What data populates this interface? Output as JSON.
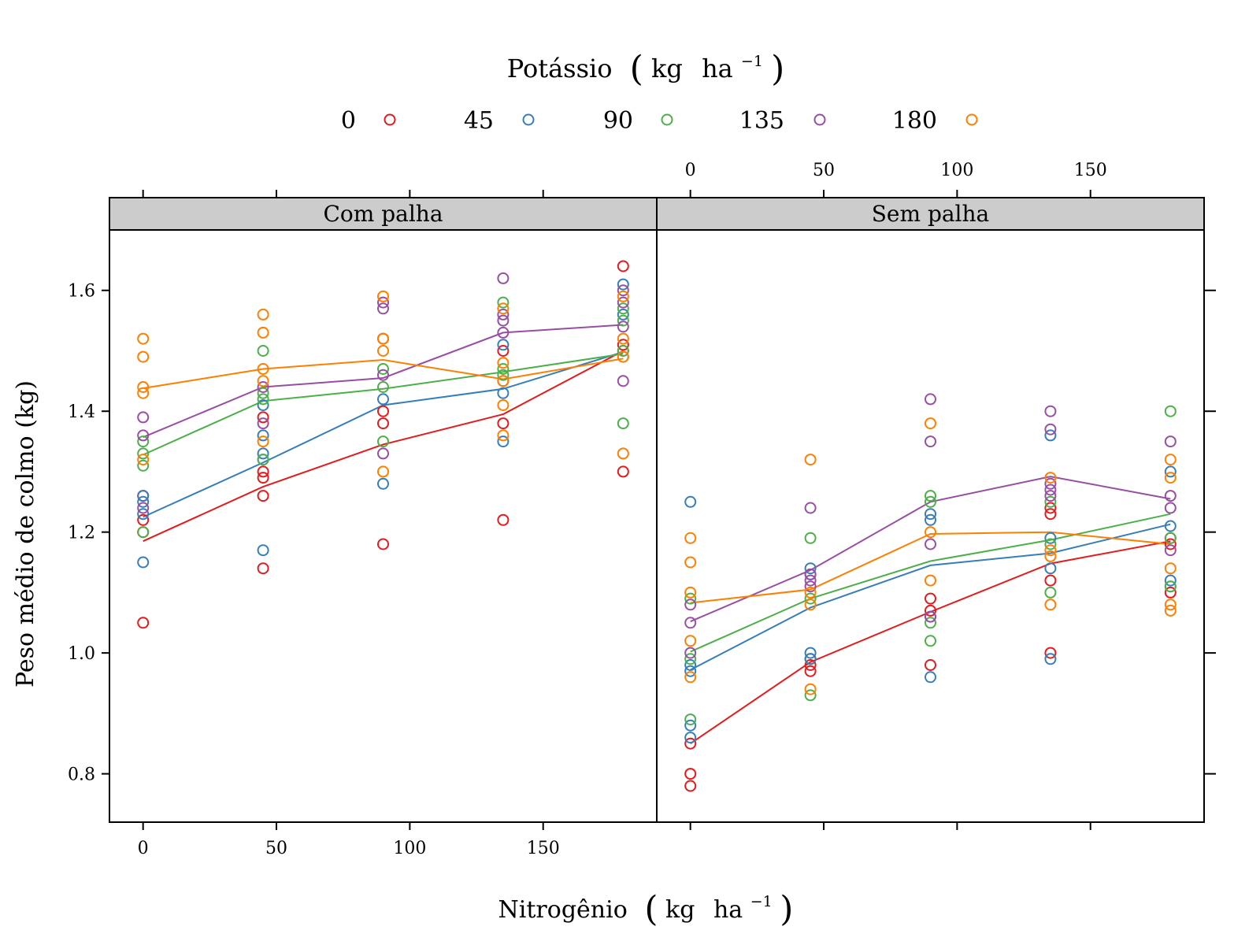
{
  "chart_data": {
    "type": "scatter",
    "title": "",
    "legend": {
      "title_main": "Potássio",
      "title_unit_kg": "kg",
      "title_unit_ha": "ha",
      "title_unit_exp": "−1",
      "position": "top",
      "entries": [
        "0",
        "45",
        "90",
        "135",
        "180"
      ]
    },
    "xlabel_main": "Nitrogênio",
    "xlabel_unit_kg": "kg",
    "xlabel_unit_ha": "ha",
    "xlabel_unit_exp": "−1",
    "ylabel": "Peso médio de colmo (kg)",
    "xlim": [
      -12.6,
      192.6
    ],
    "ylim": [
      0.72,
      1.7
    ],
    "x_ticks": [
      0,
      50,
      100,
      150
    ],
    "x_tick_labels": [
      "0",
      "50",
      "100",
      "150"
    ],
    "y_ticks": [
      0.8,
      1.0,
      1.2,
      1.4,
      1.6
    ],
    "y_tick_labels": [
      "0.8",
      "1.0",
      "1.2",
      "1.4",
      "1.6"
    ],
    "grid": false,
    "x_levels": [
      0,
      45,
      90,
      135,
      180
    ],
    "panels": [
      {
        "label": "Com palha",
        "series": [
          {
            "name": "0",
            "color": "#E41A1C",
            "means": [
              1.185,
              1.275,
              1.345,
              1.395,
              1.5
            ],
            "points": [
              [
                0,
                1.05
              ],
              [
                0,
                1.2
              ],
              [
                0,
                1.22
              ],
              [
                0,
                1.26
              ],
              [
                45,
                1.14
              ],
              [
                45,
                1.26
              ],
              [
                45,
                1.29
              ],
              [
                45,
                1.3
              ],
              [
                45,
                1.39
              ],
              [
                90,
                1.18
              ],
              [
                90,
                1.38
              ],
              [
                90,
                1.4
              ],
              [
                90,
                1.52
              ],
              [
                135,
                1.22
              ],
              [
                135,
                1.38
              ],
              [
                135,
                1.45
              ],
              [
                135,
                1.5
              ],
              [
                180,
                1.3
              ],
              [
                180,
                1.5
              ],
              [
                180,
                1.51
              ],
              [
                180,
                1.64
              ]
            ]
          },
          {
            "name": "45",
            "color": "#377EB8",
            "means": [
              1.225,
              1.315,
              1.41,
              1.437,
              1.498
            ],
            "points": [
              [
                0,
                1.15
              ],
              [
                0,
                1.23
              ],
              [
                0,
                1.25
              ],
              [
                0,
                1.26
              ],
              [
                45,
                1.17
              ],
              [
                45,
                1.32
              ],
              [
                45,
                1.33
              ],
              [
                45,
                1.36
              ],
              [
                45,
                1.41
              ],
              [
                90,
                1.28
              ],
              [
                90,
                1.42
              ],
              [
                135,
                1.35
              ],
              [
                135,
                1.43
              ],
              [
                135,
                1.51
              ],
              [
                180,
                1.49
              ],
              [
                180,
                1.56
              ],
              [
                180,
                1.61
              ]
            ]
          },
          {
            "name": "90",
            "color": "#4DAF4A",
            "means": [
              1.328,
              1.417,
              1.437,
              1.465,
              1.495
            ],
            "points": [
              [
                0,
                1.2
              ],
              [
                0,
                1.31
              ],
              [
                0,
                1.33
              ],
              [
                0,
                1.35
              ],
              [
                45,
                1.32
              ],
              [
                45,
                1.42
              ],
              [
                45,
                1.43
              ],
              [
                45,
                1.5
              ],
              [
                90,
                1.35
              ],
              [
                90,
                1.44
              ],
              [
                90,
                1.47
              ],
              [
                135,
                1.46
              ],
              [
                135,
                1.47
              ],
              [
                135,
                1.58
              ],
              [
                180,
                1.38
              ],
              [
                180,
                1.5
              ],
              [
                180,
                1.55
              ],
              [
                180,
                1.57
              ]
            ]
          },
          {
            "name": "135",
            "color": "#984EA3",
            "means": [
              1.357,
              1.44,
              1.455,
              1.53,
              1.543
            ],
            "points": [
              [
                0,
                1.24
              ],
              [
                0,
                1.36
              ],
              [
                0,
                1.39
              ],
              [
                45,
                1.38
              ],
              [
                45,
                1.44
              ],
              [
                90,
                1.33
              ],
              [
                90,
                1.46
              ],
              [
                90,
                1.57
              ],
              [
                90,
                1.58
              ],
              [
                135,
                1.53
              ],
              [
                135,
                1.55
              ],
              [
                135,
                1.56
              ],
              [
                135,
                1.62
              ],
              [
                180,
                1.45
              ],
              [
                180,
                1.54
              ],
              [
                180,
                1.58
              ],
              [
                180,
                1.6
              ]
            ]
          },
          {
            "name": "180",
            "color": "#FF7F00",
            "means": [
              1.438,
              1.47,
              1.485,
              1.453,
              1.487
            ],
            "points": [
              [
                0,
                1.32
              ],
              [
                0,
                1.43
              ],
              [
                0,
                1.44
              ],
              [
                0,
                1.49
              ],
              [
                0,
                1.52
              ],
              [
                45,
                1.35
              ],
              [
                45,
                1.45
              ],
              [
                45,
                1.47
              ],
              [
                45,
                1.53
              ],
              [
                45,
                1.56
              ],
              [
                90,
                1.3
              ],
              [
                90,
                1.5
              ],
              [
                90,
                1.52
              ],
              [
                90,
                1.59
              ],
              [
                135,
                1.36
              ],
              [
                135,
                1.41
              ],
              [
                135,
                1.45
              ],
              [
                135,
                1.48
              ],
              [
                135,
                1.57
              ],
              [
                180,
                1.33
              ],
              [
                180,
                1.49
              ],
              [
                180,
                1.52
              ],
              [
                180,
                1.59
              ]
            ]
          }
        ]
      },
      {
        "label": "Sem palha",
        "series": [
          {
            "name": "0",
            "color": "#E41A1C",
            "means": [
              0.85,
              0.985,
              1.068,
              1.148,
              1.185
            ],
            "points": [
              [
                0,
                0.78
              ],
              [
                0,
                0.8
              ],
              [
                0,
                0.85
              ],
              [
                45,
                0.97
              ],
              [
                45,
                0.98
              ],
              [
                45,
                0.99
              ],
              [
                90,
                0.98
              ],
              [
                90,
                1.07
              ],
              [
                90,
                1.09
              ],
              [
                135,
                1.0
              ],
              [
                135,
                1.12
              ],
              [
                135,
                1.23
              ],
              [
                135,
                1.24
              ],
              [
                180,
                1.1
              ],
              [
                180,
                1.18
              ],
              [
                180,
                1.19
              ]
            ]
          },
          {
            "name": "45",
            "color": "#377EB8",
            "means": [
              0.972,
              1.075,
              1.145,
              1.165,
              1.213
            ],
            "points": [
              [
                0,
                0.86
              ],
              [
                0,
                0.88
              ],
              [
                0,
                0.97
              ],
              [
                0,
                0.98
              ],
              [
                0,
                1.25
              ],
              [
                45,
                0.99
              ],
              [
                45,
                1.0
              ],
              [
                45,
                1.13
              ],
              [
                45,
                1.14
              ],
              [
                90,
                0.96
              ],
              [
                90,
                1.06
              ],
              [
                90,
                1.22
              ],
              [
                90,
                1.23
              ],
              [
                135,
                0.99
              ],
              [
                135,
                1.14
              ],
              [
                135,
                1.19
              ],
              [
                135,
                1.36
              ],
              [
                180,
                1.11
              ],
              [
                180,
                1.12
              ],
              [
                180,
                1.21
              ],
              [
                180,
                1.3
              ]
            ]
          },
          {
            "name": "90",
            "color": "#4DAF4A",
            "means": [
              1.002,
              1.09,
              1.152,
              1.187,
              1.23
            ],
            "points": [
              [
                0,
                0.89
              ],
              [
                0,
                0.99
              ],
              [
                0,
                1.09
              ],
              [
                45,
                0.93
              ],
              [
                45,
                1.09
              ],
              [
                45,
                1.19
              ],
              [
                90,
                1.02
              ],
              [
                90,
                1.05
              ],
              [
                90,
                1.25
              ],
              [
                90,
                1.26
              ],
              [
                135,
                1.1
              ],
              [
                135,
                1.18
              ],
              [
                135,
                1.25
              ],
              [
                180,
                1.11
              ],
              [
                180,
                1.19
              ],
              [
                180,
                1.4
              ]
            ]
          },
          {
            "name": "135",
            "color": "#984EA3",
            "means": [
              1.052,
              1.137,
              1.25,
              1.292,
              1.255
            ],
            "points": [
              [
                0,
                1.0
              ],
              [
                0,
                1.05
              ],
              [
                0,
                1.08
              ],
              [
                45,
                1.11
              ],
              [
                45,
                1.12
              ],
              [
                45,
                1.13
              ],
              [
                45,
                1.24
              ],
              [
                90,
                1.06
              ],
              [
                90,
                1.18
              ],
              [
                90,
                1.35
              ],
              [
                90,
                1.42
              ],
              [
                135,
                1.26
              ],
              [
                135,
                1.27
              ],
              [
                135,
                1.28
              ],
              [
                135,
                1.37
              ],
              [
                135,
                1.4
              ],
              [
                180,
                1.17
              ],
              [
                180,
                1.24
              ],
              [
                180,
                1.26
              ],
              [
                180,
                1.35
              ]
            ]
          },
          {
            "name": "180",
            "color": "#FF7F00",
            "means": [
              1.083,
              1.105,
              1.197,
              1.2,
              1.18
            ],
            "points": [
              [
                0,
                0.96
              ],
              [
                0,
                1.02
              ],
              [
                0,
                1.1
              ],
              [
                0,
                1.15
              ],
              [
                0,
                1.19
              ],
              [
                45,
                0.94
              ],
              [
                45,
                1.08
              ],
              [
                45,
                1.1
              ],
              [
                45,
                1.32
              ],
              [
                90,
                1.12
              ],
              [
                90,
                1.2
              ],
              [
                90,
                1.38
              ],
              [
                135,
                1.08
              ],
              [
                135,
                1.16
              ],
              [
                135,
                1.17
              ],
              [
                135,
                1.29
              ],
              [
                180,
                1.07
              ],
              [
                180,
                1.08
              ],
              [
                180,
                1.14
              ],
              [
                180,
                1.29
              ],
              [
                180,
                1.32
              ]
            ]
          }
        ]
      }
    ]
  }
}
